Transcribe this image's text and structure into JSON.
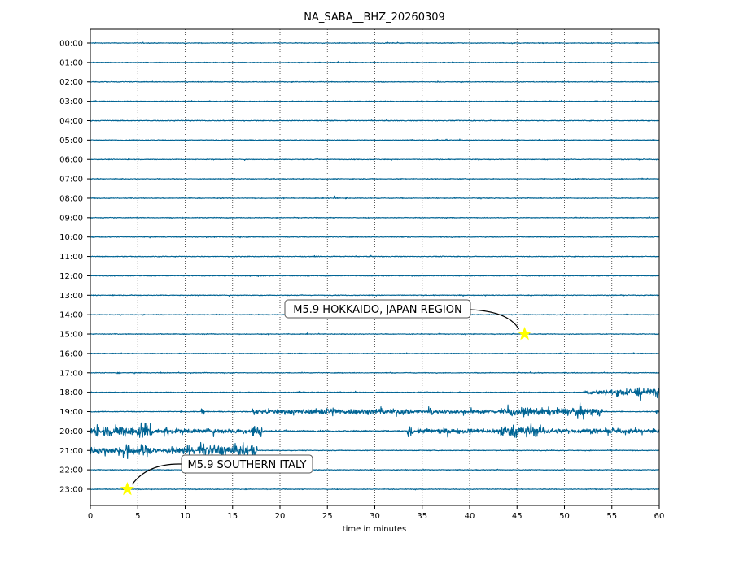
{
  "chart_data": {
    "type": "line",
    "title": "NA_SABA__BHZ_20260309",
    "xlabel": "time in minutes",
    "ylabel": "",
    "xlim": [
      0,
      60
    ],
    "xticks": [
      0,
      5,
      10,
      15,
      20,
      25,
      30,
      35,
      40,
      45,
      50,
      55,
      60
    ],
    "grid": "vertical dotted",
    "row_labels": [
      "00:00",
      "01:00",
      "02:00",
      "03:00",
      "04:00",
      "05:00",
      "06:00",
      "07:00",
      "08:00",
      "09:00",
      "10:00",
      "11:00",
      "12:00",
      "13:00",
      "14:00",
      "15:00",
      "16:00",
      "17:00",
      "18:00",
      "19:00",
      "20:00",
      "21:00",
      "22:00",
      "23:00"
    ],
    "trace_color": "#006494",
    "baseline_amplitude": 0.04,
    "bursts": [
      {
        "row": 5,
        "segments": [
          [
            36.2,
            36.6,
            0.1
          ],
          [
            37.3,
            37.7,
            0.15
          ]
        ]
      },
      {
        "row": 8,
        "segments": [
          [
            25.6,
            26.1,
            0.12
          ],
          [
            26.8,
            27.1,
            0.1
          ]
        ]
      },
      {
        "row": 10,
        "segments": [
          [
            54.8,
            55.2,
            0.08
          ]
        ]
      },
      {
        "row": 15,
        "segments": [
          [
            7.2,
            7.6,
            0.1
          ]
        ]
      },
      {
        "row": 17,
        "segments": [
          [
            2.8,
            3.3,
            0.1
          ]
        ]
      },
      {
        "row": 18,
        "segments": [
          [
            52,
            55,
            0.25
          ],
          [
            55,
            59.5,
            0.4
          ],
          [
            57.5,
            58,
            0.8
          ],
          [
            59.5,
            60,
            0.7
          ]
        ]
      },
      {
        "row": 19,
        "segments": [
          [
            9.5,
            9.7,
            0.2
          ],
          [
            11.7,
            12,
            0.6
          ],
          [
            17,
            24,
            0.25
          ],
          [
            24,
            26,
            0.45
          ],
          [
            26,
            34,
            0.3
          ],
          [
            34,
            43,
            0.2
          ],
          [
            35.8,
            36.3,
            0.5
          ],
          [
            43,
            54,
            0.4
          ],
          [
            51.5,
            52,
            0.7
          ],
          [
            59.6,
            60,
            0.5
          ]
        ]
      },
      {
        "row": 20,
        "segments": [
          [
            0,
            5,
            0.55
          ],
          [
            5,
            6.5,
            0.95
          ],
          [
            6.5,
            17,
            0.25
          ],
          [
            7.8,
            8.3,
            0.5
          ],
          [
            17,
            18.2,
            0.65
          ],
          [
            18.2,
            33,
            0.08
          ],
          [
            33.4,
            34,
            0.5
          ],
          [
            34,
            43,
            0.25
          ],
          [
            43,
            48,
            0.6
          ],
          [
            48,
            60,
            0.25
          ],
          [
            59.8,
            60,
            0.5
          ]
        ]
      },
      {
        "row": 21,
        "segments": [
          [
            0,
            3,
            0.35
          ],
          [
            3,
            6.5,
            0.6
          ],
          [
            6.5,
            11,
            0.35
          ],
          [
            10,
            10.5,
            0.7
          ],
          [
            11.3,
            17.6,
            0.6
          ]
        ]
      }
    ],
    "annotations": [
      {
        "text": "M5.9 HOKKAIDO, JAPAN REGION",
        "row": 15,
        "minute": 45.8,
        "marker": "star",
        "marker_color": "#ffff00"
      },
      {
        "text": "M5.9 SOUTHERN ITALY",
        "row": 23,
        "minute": 3.9,
        "marker": "star",
        "marker_color": "#ffff00"
      }
    ]
  }
}
